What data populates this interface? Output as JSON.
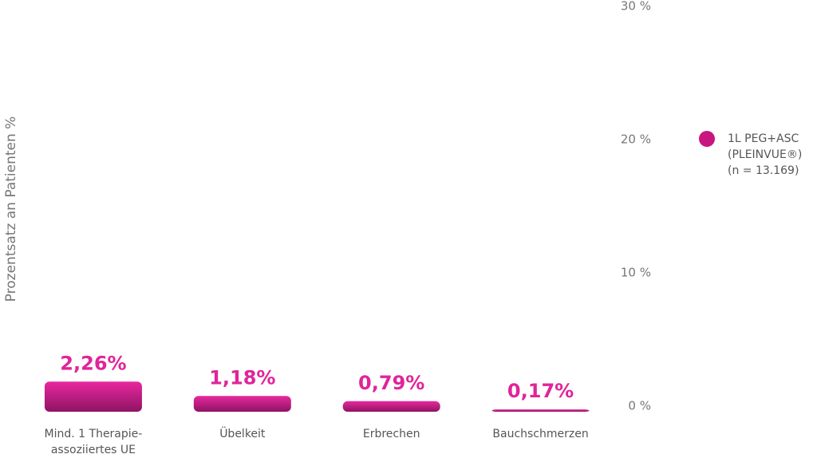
{
  "chart_data": {
    "type": "bar",
    "y_axis_label": "Prozentsatz an Patienten %",
    "categories": [
      "Mind. 1 Therapie-assoziiertes UE",
      "Übelkeit",
      "Erbrechen",
      "Bauchschmerzen"
    ],
    "series": [
      {
        "name": "1L PEG+ASC\n(PLEINVUE®)\n(n = 13.169)",
        "color": "#c8157f",
        "values": [
          2.26,
          1.18,
          0.79,
          0.17
        ],
        "value_labels": [
          "2,26%",
          "1,18%",
          "0,79%",
          "0,17%"
        ]
      }
    ],
    "ylim": [
      0,
      30
    ],
    "yticks": [
      {
        "value": 0,
        "label": "0 %"
      },
      {
        "value": 10,
        "label": "10 %"
      },
      {
        "value": 20,
        "label": "20 %"
      },
      {
        "value": 30,
        "label": "30 %"
      }
    ],
    "grid": false,
    "legend": "right"
  }
}
